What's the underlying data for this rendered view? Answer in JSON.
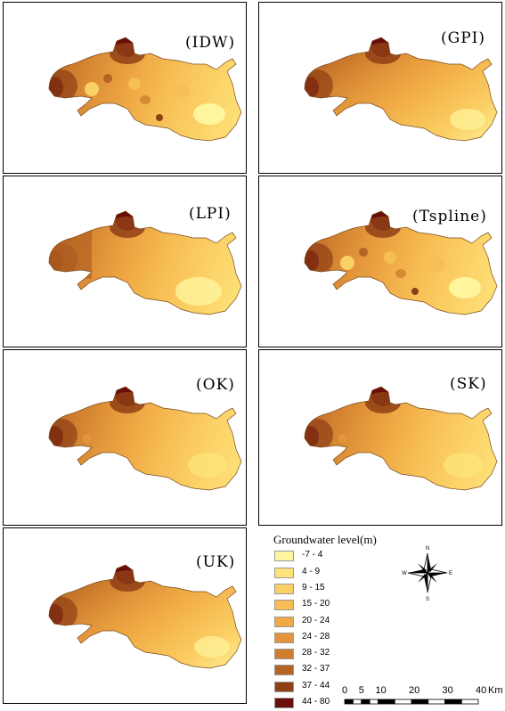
{
  "panels": [
    {
      "label": "(IDW)",
      "style": "spots"
    },
    {
      "label": "(GPI)",
      "style": "bands"
    },
    {
      "label": "(LPI)",
      "style": "blocky"
    },
    {
      "label": "(Tspline)",
      "style": "spots"
    },
    {
      "label": "(OK)",
      "style": "smooth"
    },
    {
      "label": "(SK)",
      "style": "smooth"
    },
    {
      "label": "(UK)",
      "style": "bands"
    }
  ],
  "legend": {
    "title": "Groundwater level(m)",
    "classes": [
      {
        "label": "-7 - 4",
        "color": "#fff59d"
      },
      {
        "label": "4 - 9",
        "color": "#fde37a"
      },
      {
        "label": "9 - 15",
        "color": "#fbd066"
      },
      {
        "label": "15 - 20",
        "color": "#f7be55"
      },
      {
        "label": "20 - 24",
        "color": "#f0aa45"
      },
      {
        "label": "24 - 28",
        "color": "#e2953a"
      },
      {
        "label": "28 - 32",
        "color": "#cf7e2e"
      },
      {
        "label": "32 - 37",
        "color": "#b56424"
      },
      {
        "label": "37 - 44",
        "color": "#8f3f16"
      },
      {
        "label": "44 - 80",
        "color": "#6a0d0d"
      }
    ]
  },
  "compass": {
    "n": "N",
    "s": "S",
    "e": "E",
    "w": "W"
  },
  "scalebar": {
    "ticks": [
      "0",
      "5",
      "10",
      "20",
      "30",
      "40"
    ],
    "unit": "Km"
  }
}
